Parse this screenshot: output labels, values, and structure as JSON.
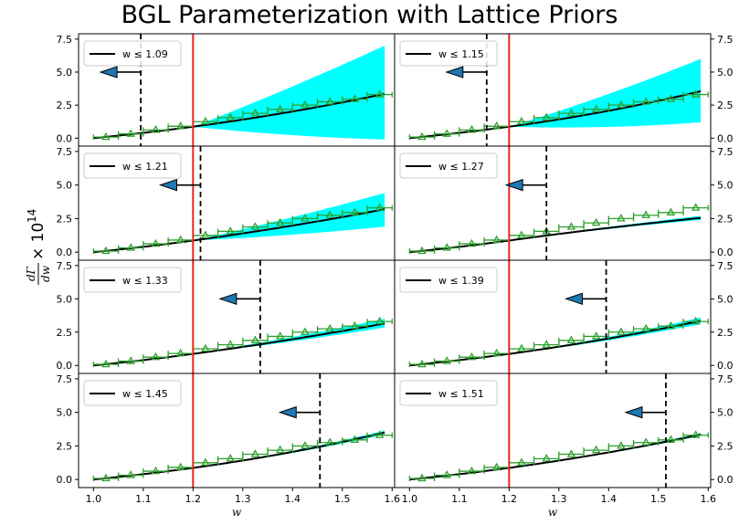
{
  "figure": {
    "title": "BGL Parameterization with Lattice Priors",
    "ylabel_fraction_num": "dΓ",
    "ylabel_fraction_den": "dw",
    "ylabel_suffix": "× 10",
    "ylabel_exponent": "14",
    "xlabel": "w"
  },
  "chart_data": {
    "type": "line",
    "layout": "4x2 grid of panels sharing x and y axes",
    "xlim": [
      0.97,
      1.605
    ],
    "ylim": [
      -0.6,
      7.9
    ],
    "xticks": [
      "1.0",
      "1.1",
      "1.2",
      "1.3",
      "1.4",
      "1.5",
      "1.6"
    ],
    "yticks": [
      "0.0",
      "2.5",
      "5.0",
      "7.5"
    ],
    "reference_line_x": 1.2,
    "colors": {
      "fit": "#000000",
      "band": "#00ffff",
      "data": "#2ca02c",
      "ref_line": "#e8271e",
      "cut_line": "#000000",
      "arrow": "#1f77b4"
    },
    "data_points": {
      "x": [
        1.025,
        1.075,
        1.125,
        1.175,
        1.225,
        1.275,
        1.325,
        1.375,
        1.425,
        1.475,
        1.525,
        1.575
      ],
      "y": [
        0.08,
        0.32,
        0.62,
        0.9,
        1.25,
        1.55,
        1.88,
        2.18,
        2.5,
        2.75,
        2.95,
        3.3
      ],
      "xerr": 0.025
    },
    "panels": [
      {
        "legend": "w ≤ 1.09",
        "cut": 1.095,
        "fit_end": 3.35,
        "band_upper": 7.0,
        "band_lower": -0.1
      },
      {
        "legend": "w ≤ 1.15",
        "cut": 1.155,
        "fit_end": 3.55,
        "band_upper": 6.0,
        "band_lower": 1.2
      },
      {
        "legend": "w ≤ 1.21",
        "cut": 1.215,
        "fit_end": 3.2,
        "band_upper": 4.4,
        "band_lower": 1.9
      },
      {
        "legend": "w ≤ 1.27",
        "cut": 1.275,
        "fit_end": 2.55,
        "band_upper": 2.7,
        "band_lower": 2.4
      },
      {
        "legend": "w ≤ 1.33",
        "cut": 1.335,
        "fit_end": 3.15,
        "band_upper": 3.5,
        "band_lower": 2.85
      },
      {
        "legend": "w ≤ 1.39",
        "cut": 1.395,
        "fit_end": 3.35,
        "band_upper": 3.6,
        "band_lower": 3.1
      },
      {
        "legend": "w ≤ 1.45",
        "cut": 1.455,
        "fit_end": 3.5,
        "band_upper": 3.65,
        "band_lower": 3.35
      },
      {
        "legend": "w ≤ 1.51",
        "cut": 1.515,
        "fit_end": 3.35,
        "band_upper": 3.45,
        "band_lower": 3.25
      }
    ]
  }
}
